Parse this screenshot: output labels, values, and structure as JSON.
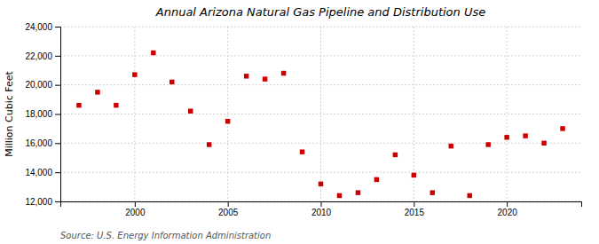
{
  "chart_data": {
    "type": "scatter",
    "title": "Annual Arizona Natural Gas Pipeline and Distribution Use",
    "ylabel": "Million Cubic Feet",
    "source": "Source: U.S. Energy Information Administration",
    "x": [
      1997,
      1998,
      1999,
      2000,
      2001,
      2002,
      2003,
      2004,
      2005,
      2006,
      2007,
      2008,
      2009,
      2010,
      2011,
      2012,
      2013,
      2014,
      2015,
      2016,
      2017,
      2018,
      2019,
      2020,
      2021,
      2022,
      2023
    ],
    "values": [
      18600,
      19500,
      18600,
      20700,
      22200,
      20200,
      18200,
      15900,
      17500,
      20600,
      20400,
      20800,
      15400,
      13200,
      12400,
      12600,
      13500,
      15200,
      13800,
      12600,
      15800,
      12400,
      15900,
      16400,
      16500,
      16000,
      17000
    ],
    "color": "#cc0000",
    "marker": "square",
    "xlim": [
      1996,
      2024
    ],
    "xticks": [
      2000,
      2005,
      2010,
      2015,
      2020
    ],
    "ylim": [
      12000,
      24000
    ],
    "yticks": [
      {
        "value": 12000,
        "label": "12,000"
      },
      {
        "value": 14000,
        "label": "14,000"
      },
      {
        "value": 16000,
        "label": "16,000"
      },
      {
        "value": 18000,
        "label": "18,000"
      },
      {
        "value": 20000,
        "label": "20,000"
      },
      {
        "value": 22000,
        "label": "22,000"
      },
      {
        "value": 24000,
        "label": "24,000"
      }
    ],
    "grid": true
  }
}
